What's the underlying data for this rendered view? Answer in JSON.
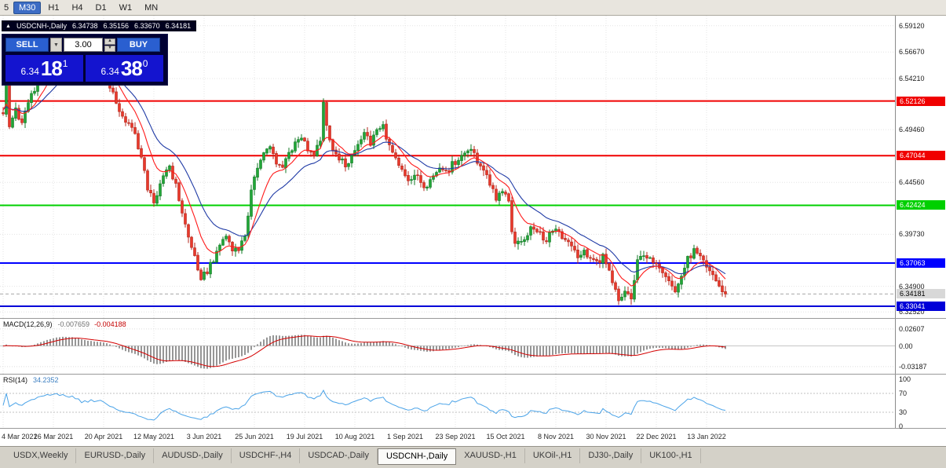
{
  "toolbar": {
    "timeframes": [
      {
        "label": "5",
        "partial": true
      },
      {
        "label": "M30",
        "active": true
      },
      {
        "label": "H1"
      },
      {
        "label": "H4"
      },
      {
        "label": "D1"
      },
      {
        "label": "W1"
      },
      {
        "label": "MN"
      }
    ]
  },
  "chart": {
    "header": {
      "marker": "▲",
      "symbol": "USDCNH-,Daily",
      "open": "6.34738",
      "high": "6.35156",
      "low": "6.33670",
      "close": "6.34181"
    },
    "trade_panel": {
      "sell_label": "SELL",
      "buy_label": "BUY",
      "volume": "3.00",
      "icons": {
        "spin_up": "▲",
        "spin_down": "▼",
        "dropdown": "▼"
      },
      "sell_price": {
        "prefix": "6.34",
        "big": "18",
        "sup": "1"
      },
      "buy_price": {
        "prefix": "6.34",
        "big": "38",
        "sup": "0"
      }
    }
  },
  "chart_data": {
    "type": "candlestick",
    "symbol": "USDCNH-,Daily",
    "timeframe": "Daily",
    "num_candles": 231,
    "bars_per_label": 16,
    "last_close": 6.34181,
    "y_min": 6.3195,
    "y_max": 6.6005,
    "y_axis_labels": [
      "6.59120",
      "6.56670",
      "6.54210",
      "6.49460",
      "6.44560",
      "6.39730",
      "6.34900",
      "6.32520"
    ],
    "x_axis_labels": [
      "4 Mar 2021",
      "26 Mar 2021",
      "20 Apr 2021",
      "12 May 2021",
      "3 Jun 2021",
      "25 Jun 2021",
      "19 Jul 2021",
      "10 Aug 2021",
      "1 Sep 2021",
      "23 Sep 2021",
      "15 Oct 2021",
      "8 Nov 2021",
      "30 Nov 2021",
      "22 Dec 2021",
      "13 Jan 2022"
    ],
    "price_path": [
      [
        0,
        6.513
      ],
      [
        1,
        6.546
      ],
      [
        2,
        6.498
      ],
      [
        4,
        6.512
      ],
      [
        6,
        6.504
      ],
      [
        8,
        6.52
      ],
      [
        10,
        6.536
      ],
      [
        13,
        6.552
      ],
      [
        16,
        6.562
      ],
      [
        19,
        6.571
      ],
      [
        22,
        6.561
      ],
      [
        25,
        6.548
      ],
      [
        28,
        6.553
      ],
      [
        31,
        6.557
      ],
      [
        33,
        6.541
      ],
      [
        36,
        6.52
      ],
      [
        39,
        6.503
      ],
      [
        42,
        6.49
      ],
      [
        44,
        6.469
      ],
      [
        46,
        6.44
      ],
      [
        48,
        6.426
      ],
      [
        50,
        6.447
      ],
      [
        53,
        6.461
      ],
      [
        55,
        6.442
      ],
      [
        57,
        6.418
      ],
      [
        59,
        6.394
      ],
      [
        61,
        6.376
      ],
      [
        63,
        6.358
      ],
      [
        65,
        6.362
      ],
      [
        67,
        6.375
      ],
      [
        69,
        6.388
      ],
      [
        71,
        6.396
      ],
      [
        73,
        6.385
      ],
      [
        75,
        6.381
      ],
      [
        77,
        6.398
      ],
      [
        79,
        6.437
      ],
      [
        81,
        6.459
      ],
      [
        83,
        6.472
      ],
      [
        85,
        6.478
      ],
      [
        87,
        6.465
      ],
      [
        89,
        6.459
      ],
      [
        91,
        6.472
      ],
      [
        93,
        6.484
      ],
      [
        95,
        6.489
      ],
      [
        97,
        6.477
      ],
      [
        99,
        6.472
      ],
      [
        101,
        6.487
      ],
      [
        102,
        6.521
      ],
      [
        103,
        6.496
      ],
      [
        105,
        6.478
      ],
      [
        107,
        6.468
      ],
      [
        109,
        6.461
      ],
      [
        111,
        6.471
      ],
      [
        113,
        6.48
      ],
      [
        115,
        6.489
      ],
      [
        117,
        6.483
      ],
      [
        119,
        6.492
      ],
      [
        121,
        6.497
      ],
      [
        123,
        6.481
      ],
      [
        125,
        6.469
      ],
      [
        127,
        6.457
      ],
      [
        129,
        6.449
      ],
      [
        131,
        6.453
      ],
      [
        133,
        6.446
      ],
      [
        135,
        6.438
      ],
      [
        137,
        6.452
      ],
      [
        139,
        6.458
      ],
      [
        141,
        6.454
      ],
      [
        143,
        6.462
      ],
      [
        145,
        6.468
      ],
      [
        147,
        6.473
      ],
      [
        149,
        6.479
      ],
      [
        151,
        6.466
      ],
      [
        153,
        6.455
      ],
      [
        155,
        6.446
      ],
      [
        157,
        6.431
      ],
      [
        159,
        6.44
      ],
      [
        161,
        6.429
      ],
      [
        162,
        6.402
      ],
      [
        163,
        6.387
      ],
      [
        165,
        6.391
      ],
      [
        167,
        6.399
      ],
      [
        169,
        6.405
      ],
      [
        171,
        6.397
      ],
      [
        173,
        6.391
      ],
      [
        175,
        6.403
      ],
      [
        177,
        6.397
      ],
      [
        179,
        6.392
      ],
      [
        181,
        6.385
      ],
      [
        183,
        6.377
      ],
      [
        185,
        6.381
      ],
      [
        187,
        6.375
      ],
      [
        189,
        6.371
      ],
      [
        191,
        6.377
      ],
      [
        193,
        6.361
      ],
      [
        195,
        6.348
      ],
      [
        196,
        6.337
      ],
      [
        198,
        6.345
      ],
      [
        200,
        6.338
      ],
      [
        202,
        6.371
      ],
      [
        204,
        6.38
      ],
      [
        206,
        6.373
      ],
      [
        208,
        6.367
      ],
      [
        210,
        6.359
      ],
      [
        212,
        6.351
      ],
      [
        214,
        6.344
      ],
      [
        216,
        6.359
      ],
      [
        218,
        6.374
      ],
      [
        220,
        6.382
      ],
      [
        222,
        6.374
      ],
      [
        224,
        6.369
      ],
      [
        226,
        6.359
      ],
      [
        228,
        6.349
      ],
      [
        230,
        6.3418
      ]
    ],
    "noise": 0.0033,
    "hlines": [
      {
        "price": 6.52126,
        "label": "6.52126",
        "color": "#f00000",
        "width": 2
      },
      {
        "price": 6.47044,
        "label": "6.47044",
        "color": "#f00000",
        "width": 2
      },
      {
        "price": 6.42424,
        "label": "6.42424",
        "color": "#00d000",
        "width": 2
      },
      {
        "price": 6.37063,
        "label": "6.37063",
        "color": "#0000ff",
        "width": 2
      },
      {
        "price": 6.33041,
        "label": "6.33041",
        "color": "#0000d8",
        "width": 2
      }
    ],
    "current_price": {
      "value": 6.34181,
      "label": "6.34181",
      "tag_bg": "#d8d8d8",
      "tag_text": "#000000"
    },
    "ma_fast": {
      "period": 10,
      "color": "#ff1a1a"
    },
    "ma_slow": {
      "period": 21,
      "color": "#1f3aa5"
    },
    "candle_up": {
      "fill": "#21a637",
      "stroke": "#117a24"
    },
    "candle_down": {
      "fill": "#e8392b",
      "stroke": "#b5271c"
    },
    "indicators": {
      "macd": {
        "name": "MACD(12,26,9)",
        "value1": "-0.007659",
        "value2": "-0.004188",
        "fast": 12,
        "slow": 26,
        "signal": 9,
        "axis_labels": [
          "0.02607",
          "0.00",
          "-0.03187"
        ],
        "y_min": -0.0429,
        "y_max": 0.0417,
        "bar_color": "#969696",
        "signal_color": "#d40000"
      },
      "rsi": {
        "name": "RSI(14)",
        "value": "34.2352",
        "period": 14,
        "axis_labels": [
          "100",
          "70",
          "30",
          "0"
        ],
        "levels": [
          70,
          30
        ],
        "color": "#4aa3e8"
      }
    }
  },
  "tabs": [
    {
      "label": "USDX,Weekly"
    },
    {
      "label": "EURUSD-,Daily"
    },
    {
      "label": "AUDUSD-,Daily"
    },
    {
      "label": "USDCHF-,H4"
    },
    {
      "label": "USDCAD-,Daily"
    },
    {
      "label": "USDCNH-,Daily",
      "active": true
    },
    {
      "label": "XAUUSD-,H1"
    },
    {
      "label": "UKOil-,H1"
    },
    {
      "label": "DJ30-,Daily"
    },
    {
      "label": "UK100-,H1"
    }
  ]
}
